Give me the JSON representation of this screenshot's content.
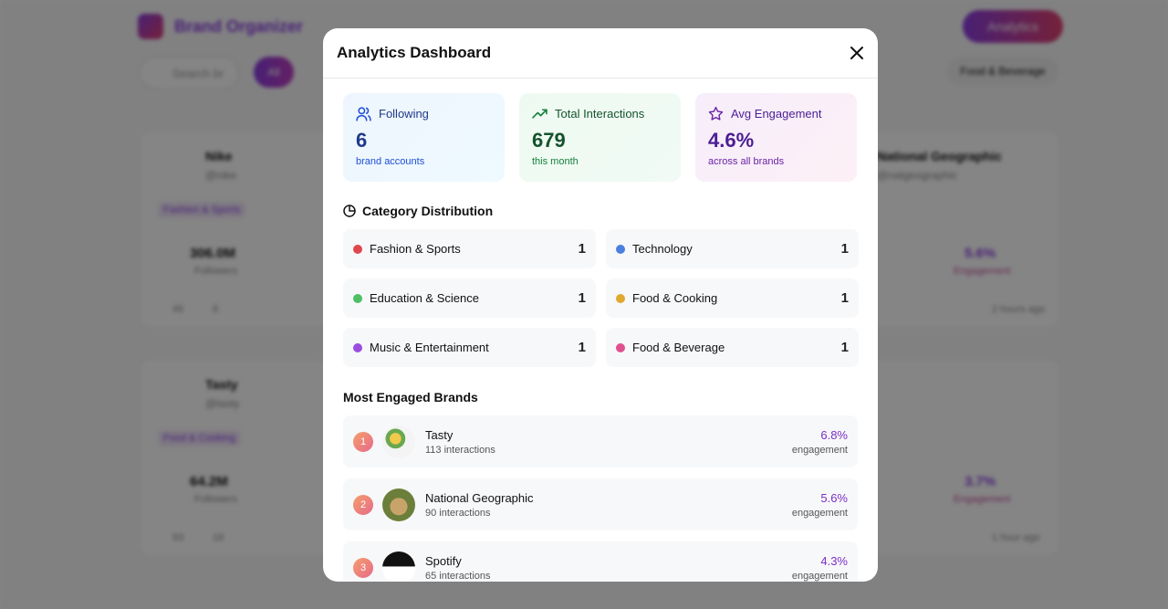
{
  "background": {
    "app_title": "Brand Organizer",
    "analytics_button": "Analytics",
    "search_placeholder": "Search br",
    "filters": [
      "All",
      "Food & Beverage"
    ],
    "cards": [
      {
        "name": "Nike",
        "handle": "@nike",
        "category": "Fashion & Sports",
        "followers": "306.0M",
        "followers_label": "Followers",
        "likes": "45",
        "comments": "8"
      },
      {
        "name": "Tasty",
        "handle": "@tasty",
        "category": "Food & Cooking",
        "followers": "64.2M",
        "followers_label": "Followers",
        "likes": "93",
        "comments": "16"
      },
      {
        "name": "National Geographic",
        "handle": "@natgeographic",
        "engagement": "5.6%",
        "engagement_label": "Engagement",
        "time": "2 hours ago"
      },
      {
        "engagement": "3.7%",
        "engagement_label": "Engagement",
        "time": "1 hour ago"
      }
    ]
  },
  "modal": {
    "title": "Analytics Dashboard",
    "stats": [
      {
        "label": "Following",
        "value": "6",
        "caption": "brand accounts"
      },
      {
        "label": "Total Interactions",
        "value": "679",
        "caption": "this month"
      },
      {
        "label": "Avg Engagement",
        "value": "4.6%",
        "caption": "across all brands"
      }
    ],
    "category_heading": "Category Distribution",
    "categories": [
      {
        "name": "Fashion & Sports",
        "count": "1",
        "color": "#e0474c"
      },
      {
        "name": "Technology",
        "count": "1",
        "color": "#4a7fe0"
      },
      {
        "name": "Education & Science",
        "count": "1",
        "color": "#4fbf63"
      },
      {
        "name": "Food & Cooking",
        "count": "1",
        "color": "#e0a92f"
      },
      {
        "name": "Music & Entertainment",
        "count": "1",
        "color": "#9b4de0"
      },
      {
        "name": "Food & Beverage",
        "count": "1",
        "color": "#e0508f"
      }
    ],
    "brands_heading": "Most Engaged Brands",
    "brands": [
      {
        "rank": "1",
        "name": "Tasty",
        "interactions": "113 interactions",
        "engagement": "6.8%",
        "engagement_label": "engagement"
      },
      {
        "rank": "2",
        "name": "National Geographic",
        "interactions": "90 interactions",
        "engagement": "5.6%",
        "engagement_label": "engagement"
      },
      {
        "rank": "3",
        "name": "Spotify",
        "interactions": "65 interactions",
        "engagement": "4.3%",
        "engagement_label": "engagement"
      }
    ]
  }
}
